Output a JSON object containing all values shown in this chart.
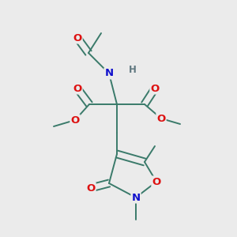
{
  "bg_color": "#ebebeb",
  "bond_color": "#3a7a6a",
  "bond_width": 1.4,
  "atom_colors": {
    "O": "#dd1111",
    "N": "#1111cc",
    "H": "#607880",
    "C": "#3a7a6a"
  },
  "figsize": [
    3.0,
    3.0
  ],
  "dpi": 100
}
